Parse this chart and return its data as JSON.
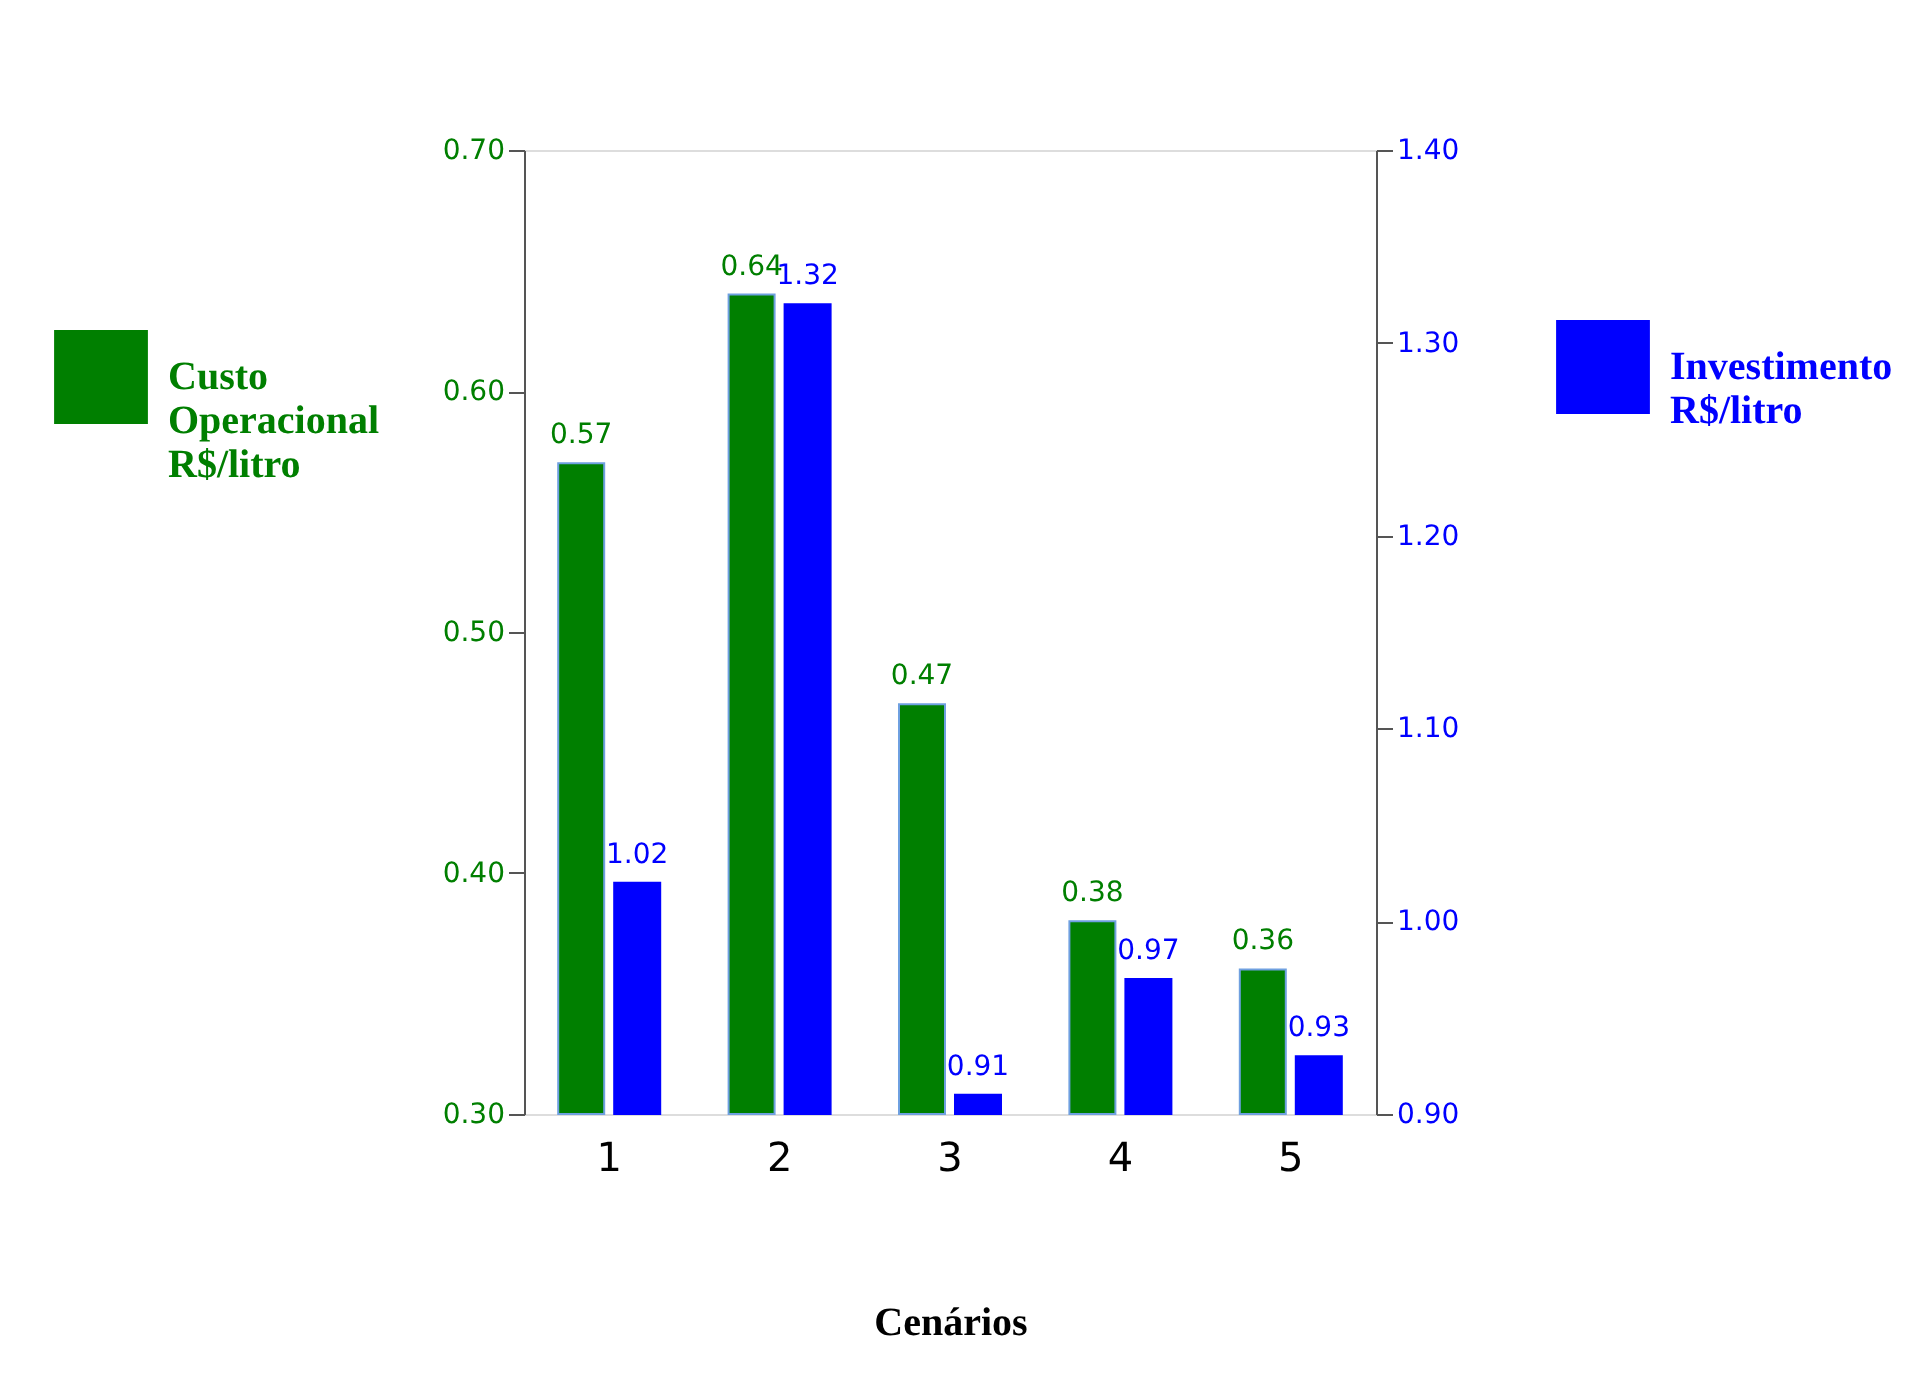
{
  "chart_data": {
    "type": "bar",
    "xlabel": "Cenários",
    "categories": [
      "1",
      "2",
      "3",
      "4",
      "5"
    ],
    "series": [
      {
        "name": "Custo Operacional R$/litro",
        "color": "#007f00",
        "values": [
          0.57,
          0.64,
          0.47,
          0.38,
          0.36
        ]
      },
      {
        "name": "Investimento R$/litro",
        "color": "#0000ff",
        "axis": "y2",
        "values": [
          1.02,
          1.32,
          0.91,
          0.97,
          0.93
        ]
      }
    ],
    "ylim": [
      0.3,
      0.7
    ],
    "yticks": [
      {
        "value": 0.3,
        "label": "0.30"
      },
      {
        "value": 0.4,
        "label": "0.40"
      },
      {
        "value": 0.5,
        "label": "0.50"
      },
      {
        "value": 0.6,
        "label": "0.60"
      },
      {
        "value": 0.7,
        "label": "0.70"
      }
    ],
    "y2lim": [
      0.9,
      1.4
    ],
    "y2ticks": [
      {
        "value": 0.9,
        "label": "0.90"
      },
      {
        "value": 1.0,
        "label": "1.00"
      },
      {
        "value": 1.1,
        "label": "1.10"
      },
      {
        "value": 1.2,
        "label": "1.20"
      },
      {
        "value": 1.3,
        "label": "1.30"
      },
      {
        "value": 1.4,
        "label": "1.40"
      }
    ],
    "data_labels": true,
    "grid": false,
    "legend": "left"
  }
}
